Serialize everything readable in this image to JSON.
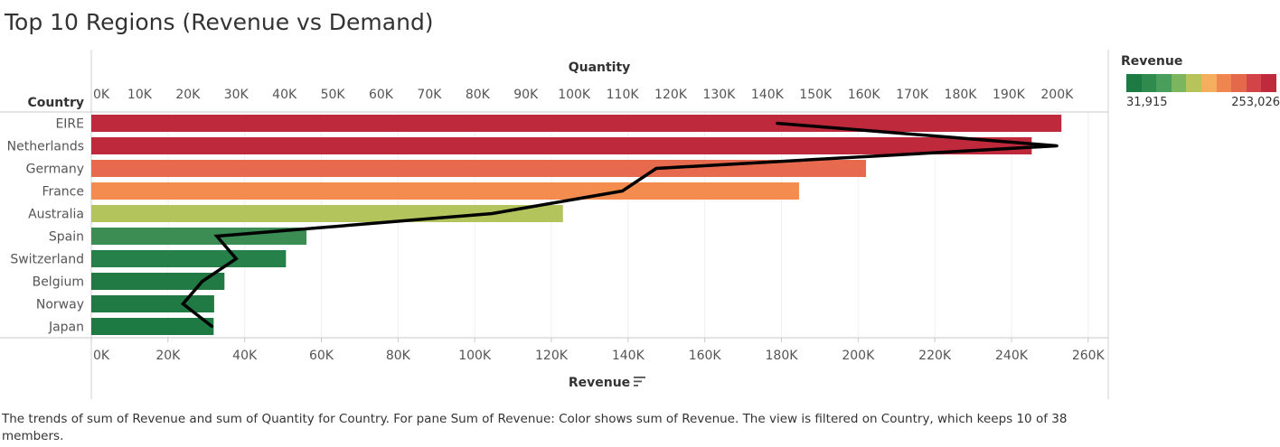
{
  "title": "Top 10 Regions (Revenue vs Demand)",
  "caption": "The trends of sum of Revenue and sum of Quantity for Country.  For pane Sum of Revenue:  Color shows sum of Revenue. The view is filtered on Country, which keeps 10 of 38 members.",
  "legend": {
    "title": "Revenue",
    "min_label": "31,915",
    "max_label": "253,026",
    "colors": [
      "#1e7a43",
      "#2f8a4e",
      "#4a9e5c",
      "#7bb55e",
      "#b7c45a",
      "#f5ad5e",
      "#f0864f",
      "#e4684a",
      "#d24447",
      "#bf2a3c"
    ]
  },
  "chart_data": {
    "type": "bar",
    "row_header": "Country",
    "top_axis_title": "Quantity",
    "bottom_axis_title": "Revenue",
    "categories": [
      "EIRE",
      "Netherlands",
      "Germany",
      "France",
      "Australia",
      "Spain",
      "Switzerland",
      "Belgium",
      "Norway",
      "Japan"
    ],
    "revenue": [
      253026,
      245279,
      202050,
      184597,
      123011,
      56137,
      50773,
      34733,
      32044,
      31915
    ],
    "bar_colors": [
      "#be2a3c",
      "#be2a3c",
      "#e86a4e",
      "#f48b4f",
      "#b4c45c",
      "#3b8d54",
      "#26804a",
      "#217a44",
      "#1f7a44",
      "#1e7a43"
    ],
    "quantity": [
      142000,
      200000,
      117000,
      110000,
      83000,
      26000,
      30000,
      23000,
      19000,
      25000
    ],
    "revenue_ticks": [
      0,
      20000,
      40000,
      60000,
      80000,
      100000,
      120000,
      140000,
      160000,
      180000,
      200000,
      220000,
      240000,
      260000
    ],
    "revenue_tick_labels": [
      "0K",
      "20K",
      "40K",
      "60K",
      "80K",
      "100K",
      "120K",
      "140K",
      "160K",
      "180K",
      "200K",
      "220K",
      "240K",
      "260K"
    ],
    "quantity_ticks": [
      0,
      10000,
      20000,
      30000,
      40000,
      50000,
      60000,
      70000,
      80000,
      90000,
      100000,
      110000,
      120000,
      130000,
      140000,
      150000,
      160000,
      170000,
      180000,
      190000,
      200000
    ],
    "quantity_tick_labels": [
      "0K",
      "10K",
      "20K",
      "30K",
      "40K",
      "50K",
      "60K",
      "70K",
      "80K",
      "90K",
      "100K",
      "110K",
      "120K",
      "130K",
      "140K",
      "150K",
      "160K",
      "170K",
      "180K",
      "190K",
      "200K"
    ],
    "revenue_range": [
      0,
      265000
    ],
    "quantity_range": [
      0,
      200500
    ]
  }
}
